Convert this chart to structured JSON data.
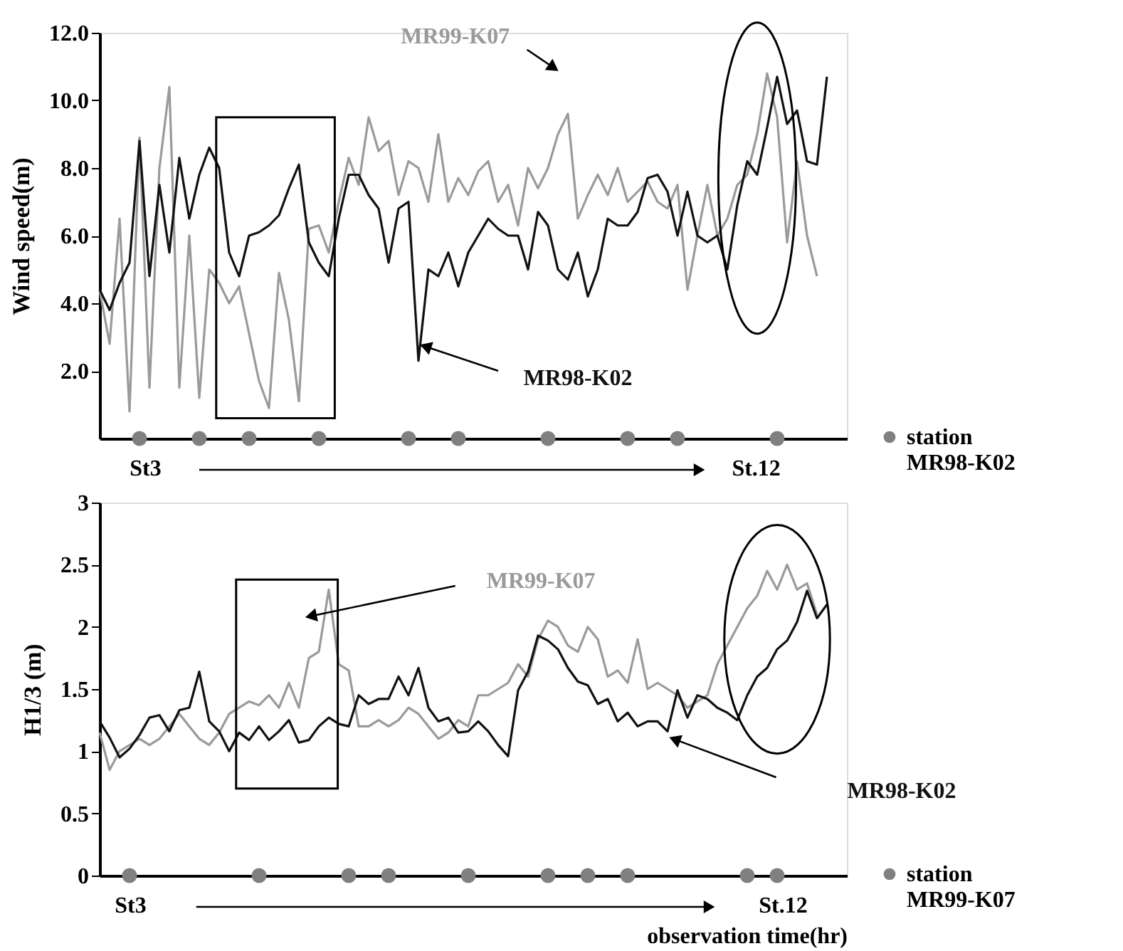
{
  "chart_data": [
    {
      "type": "line",
      "ylabel": "Wind speed(m)",
      "categories": [
        null,
        null,
        null,
        null,
        null,
        null,
        null,
        null,
        null,
        null,
        null,
        null,
        null,
        null,
        null,
        null,
        null,
        null,
        null,
        null,
        null,
        null,
        null,
        null,
        null,
        null,
        null,
        null,
        null,
        null,
        null,
        null,
        null,
        null,
        null,
        null,
        null,
        null,
        null,
        null,
        null,
        null,
        null,
        null,
        null,
        null,
        null,
        null,
        null,
        null,
        null,
        null,
        null,
        null,
        null,
        null,
        null,
        null,
        null,
        null,
        null,
        null,
        null,
        null,
        null,
        null,
        null,
        null,
        null,
        null,
        null,
        null,
        null,
        null,
        null,
        null
      ],
      "ylim": [
        0,
        12
      ],
      "yticks": [
        {
          "value": 2,
          "label": "2.0"
        },
        {
          "value": 4,
          "label": "4.0"
        },
        {
          "value": 6,
          "label": "6.0"
        },
        {
          "value": 8,
          "label": "8.0"
        },
        {
          "value": 10,
          "label": "10.0"
        },
        {
          "value": 12,
          "label": "12.0"
        }
      ],
      "tick_labels": "y",
      "legend": "bottom right",
      "annotations": [
        "St3",
        "St.12"
      ],
      "series": [
        {
          "name": "MR99-K07",
          "color": "#9a9a9a",
          "values": [
            4.4,
            2.8,
            6.5,
            0.8,
            8.9,
            1.5,
            8.0,
            10.4,
            1.5,
            6.0,
            1.2,
            5.0,
            4.6,
            4.0,
            4.5,
            3.1,
            1.7,
            0.9,
            4.9,
            3.5,
            1.1,
            6.2,
            6.3,
            5.5,
            7.0,
            8.3,
            7.5,
            9.5,
            8.5,
            8.8,
            7.2,
            8.2,
            8.0,
            7.0,
            9.0,
            7.0,
            7.7,
            7.2,
            7.9,
            8.2,
            7.0,
            7.5,
            6.3,
            8.0,
            7.4,
            8.0,
            9.0,
            9.6,
            6.5,
            7.2,
            7.8,
            7.2,
            8.0,
            7.0,
            7.3,
            7.6,
            7.0,
            6.8,
            7.5,
            4.4,
            6.0,
            7.5,
            6.0,
            6.5,
            7.5,
            7.8,
            9.0,
            10.8,
            9.5,
            5.8,
            8.2,
            6.0,
            4.8,
            null,
            null,
            null
          ]
        },
        {
          "name": "MR98-K02",
          "color": "#111111",
          "values": [
            4.4,
            3.8,
            4.6,
            5.2,
            8.8,
            4.8,
            7.5,
            5.5,
            8.3,
            6.5,
            7.8,
            8.6,
            8.0,
            5.5,
            4.8,
            6.0,
            6.1,
            6.3,
            6.6,
            7.4,
            8.1,
            5.8,
            5.2,
            4.8,
            6.5,
            7.8,
            7.8,
            7.2,
            6.8,
            5.2,
            6.8,
            7.0,
            2.3,
            5.0,
            4.8,
            5.5,
            4.5,
            5.5,
            6.0,
            6.5,
            6.2,
            6.0,
            6.0,
            5.0,
            6.7,
            6.3,
            5.0,
            4.7,
            5.5,
            4.2,
            5.0,
            6.5,
            6.3,
            6.3,
            6.7,
            7.7,
            7.8,
            7.3,
            6.0,
            7.3,
            6.0,
            5.8,
            6.0,
            5.0,
            6.9,
            8.2,
            7.8,
            9.2,
            10.7,
            9.3,
            9.7,
            8.2,
            8.1,
            10.7,
            null,
            null
          ]
        },
        {
          "name": "station MR98-K02",
          "type": "scatter",
          "color": "#808080",
          "values": [
            null,
            null,
            null,
            null,
            0,
            null,
            null,
            null,
            null,
            null,
            0,
            null,
            null,
            null,
            null,
            0,
            null,
            null,
            null,
            null,
            null,
            null,
            0,
            null,
            null,
            null,
            null,
            null,
            null,
            null,
            null,
            0,
            null,
            null,
            null,
            null,
            0,
            null,
            null,
            null,
            null,
            null,
            null,
            null,
            null,
            0,
            null,
            null,
            null,
            null,
            null,
            null,
            null,
            0,
            null,
            null,
            null,
            null,
            0,
            null,
            null,
            null,
            null,
            null,
            null,
            null,
            null,
            null,
            0,
            null,
            null,
            null,
            null,
            null,
            null,
            null
          ]
        }
      ]
    },
    {
      "type": "line",
      "ylabel": "H1/3 (m)",
      "xlabel": "observation time(hr)",
      "categories": [
        null,
        null,
        null,
        null,
        null,
        null,
        null,
        null,
        null,
        null,
        null,
        null,
        null,
        null,
        null,
        null,
        null,
        null,
        null,
        null,
        null,
        null,
        null,
        null,
        null,
        null,
        null,
        null,
        null,
        null,
        null,
        null,
        null,
        null,
        null,
        null,
        null,
        null,
        null,
        null,
        null,
        null,
        null,
        null,
        null,
        null,
        null,
        null,
        null,
        null,
        null,
        null,
        null,
        null,
        null,
        null,
        null,
        null,
        null,
        null,
        null,
        null,
        null,
        null,
        null,
        null,
        null,
        null,
        null,
        null,
        null,
        null,
        null,
        null,
        null,
        null
      ],
      "ylim": [
        0,
        3
      ],
      "yticks": [
        0,
        0.5,
        1,
        1.5,
        2,
        2.5,
        3
      ],
      "tick_labels": "y",
      "legend": "bottom right",
      "annotations": [
        "St3",
        "St.12"
      ],
      "series": [
        {
          "name": "MR99-K07",
          "color": "#9a9a9a",
          "values": [
            1.15,
            0.85,
            1.0,
            1.05,
            1.1,
            1.05,
            1.1,
            1.2,
            1.3,
            1.2,
            1.1,
            1.05,
            1.15,
            1.3,
            1.35,
            1.4,
            1.37,
            1.45,
            1.35,
            1.55,
            1.35,
            1.75,
            1.8,
            2.3,
            1.7,
            1.65,
            1.2,
            1.2,
            1.25,
            1.2,
            1.25,
            1.35,
            1.3,
            1.2,
            1.1,
            1.15,
            1.25,
            1.2,
            1.45,
            1.45,
            1.5,
            1.55,
            1.7,
            1.6,
            1.9,
            2.05,
            2.0,
            1.85,
            1.8,
            2.0,
            1.9,
            1.6,
            1.65,
            1.55,
            1.9,
            1.5,
            1.55,
            1.5,
            1.45,
            1.35,
            1.4,
            1.45,
            1.7,
            1.85,
            2.0,
            2.15,
            2.25,
            2.45,
            2.3,
            2.5,
            2.3,
            2.35,
            2.1,
            null,
            null,
            null
          ]
        },
        {
          "name": "MR98-K02",
          "color": "#111111",
          "values": [
            1.24,
            1.11,
            0.95,
            1.02,
            1.13,
            1.27,
            1.29,
            1.16,
            1.33,
            1.35,
            1.64,
            1.24,
            1.16,
            1.0,
            1.15,
            1.09,
            1.2,
            1.09,
            1.16,
            1.25,
            1.07,
            1.09,
            1.2,
            1.27,
            1.22,
            1.2,
            1.45,
            1.38,
            1.42,
            1.42,
            1.6,
            1.45,
            1.67,
            1.35,
            1.24,
            1.27,
            1.15,
            1.16,
            1.24,
            1.16,
            1.05,
            0.96,
            1.49,
            1.64,
            1.93,
            1.89,
            1.82,
            1.67,
            1.56,
            1.53,
            1.38,
            1.42,
            1.24,
            1.31,
            1.2,
            1.24,
            1.24,
            1.16,
            1.49,
            1.27,
            1.45,
            1.42,
            1.35,
            1.31,
            1.25,
            1.45,
            1.6,
            1.67,
            1.82,
            1.89,
            2.04,
            2.29,
            2.07,
            2.18,
            null,
            null
          ]
        },
        {
          "name": "station MR99-K07",
          "type": "scatter",
          "color": "#808080",
          "values": [
            null,
            null,
            null,
            0,
            null,
            null,
            null,
            null,
            null,
            null,
            null,
            null,
            null,
            null,
            null,
            null,
            0,
            null,
            null,
            null,
            null,
            null,
            null,
            null,
            null,
            0,
            null,
            null,
            null,
            0,
            null,
            null,
            null,
            null,
            null,
            null,
            null,
            0,
            null,
            null,
            null,
            null,
            null,
            null,
            null,
            0,
            null,
            null,
            null,
            0,
            null,
            null,
            null,
            0,
            null,
            null,
            null,
            null,
            null,
            null,
            null,
            null,
            null,
            null,
            null,
            0,
            null,
            null,
            0,
            null,
            null,
            null,
            null,
            null,
            null,
            null
          ]
        }
      ]
    }
  ]
}
